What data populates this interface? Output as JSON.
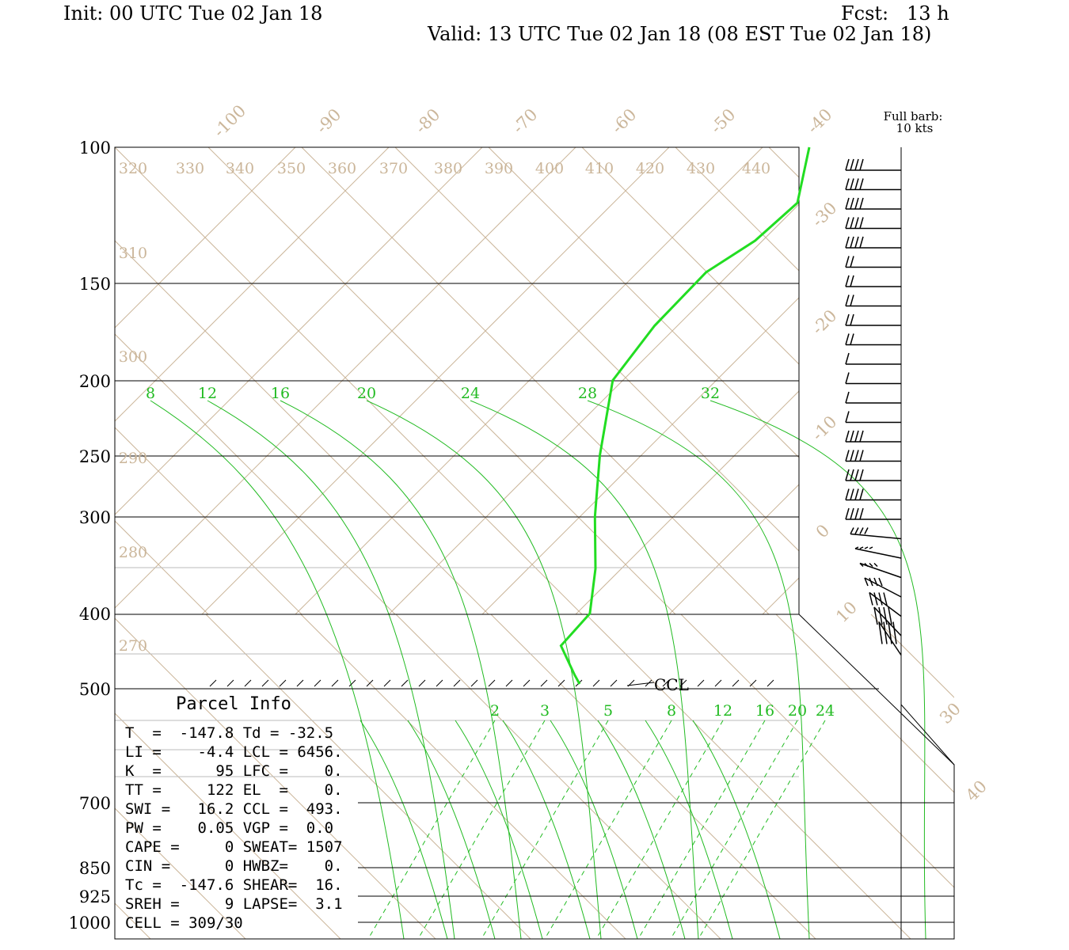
{
  "header": {
    "init": "Init: 00 UTC Tue 02 Jan 18",
    "fcst": "Fcst:   13 h",
    "valid": "Valid: 13 UTC Tue 02 Jan 18 (08 EST Tue 02 Jan 18)"
  },
  "colors": {
    "grid": "#cbb69a",
    "mixing_ratio": "#22bb22",
    "profile": "#22dd22",
    "text": "#000000"
  },
  "chart_data": {
    "type": "line",
    "title": "",
    "pressure_labels": [
      "100",
      "150",
      "200",
      "250",
      "300",
      "400",
      "500",
      "700",
      "850",
      "925",
      "1000"
    ],
    "temperature_labels": [
      "-100",
      "-90",
      "-80",
      "-70",
      "-60",
      "-50",
      "-40",
      "-30",
      "-20",
      "-10",
      "0",
      "10",
      "30",
      "40"
    ],
    "theta_labels": [
      "320",
      "330",
      "340",
      "350",
      "360",
      "370",
      "380",
      "390",
      "400",
      "410",
      "420",
      "430",
      "440",
      "310",
      "300",
      "290",
      "280",
      "270"
    ],
    "mixing_ratio_upper_labels": [
      "8",
      "12",
      "16",
      "20",
      "24",
      "28",
      "32"
    ],
    "mixing_ratio_lower_labels": [
      "2",
      "3",
      "5",
      "8",
      "12",
      "16",
      "20",
      "24"
    ],
    "barb_legend": [
      "Full barb:",
      "10 kts"
    ],
    "ccl_label": "CCL",
    "profile_temperature": {
      "points": [
        {
          "p": 100,
          "t": -40
        },
        {
          "p": 118,
          "t": -38
        },
        {
          "p": 132,
          "t": -40
        },
        {
          "p": 145,
          "t": -43
        },
        {
          "p": 170,
          "t": -45
        },
        {
          "p": 200,
          "t": -46
        },
        {
          "p": 250,
          "t": -43
        },
        {
          "p": 300,
          "t": -40
        },
        {
          "p": 350,
          "t": -37
        },
        {
          "p": 400,
          "t": -35
        },
        {
          "p": 440,
          "t": -36
        },
        {
          "p": 480,
          "t": -33
        },
        {
          "p": 493,
          "t": -32
        }
      ]
    }
  },
  "parcel_info": {
    "title": "Parcel Info",
    "rows": [
      "T  =  -147.8 Td = -32.5",
      "LI =    -4.4 LCL = 6456.",
      "K  =      95 LFC =    0.",
      "TT =     122 EL  =    0.",
      "SWI =   16.2 CCL =  493.",
      "PW =    0.05 VGP =  0.0",
      "CAPE =     0 SWEAT= 1507",
      "CIN =      0 HWBZ=    0.",
      "Tc =  -147.6 SHEAR=  16.",
      "SREH =     9 LAPSE=  3.1",
      "CELL = 309/30"
    ]
  }
}
